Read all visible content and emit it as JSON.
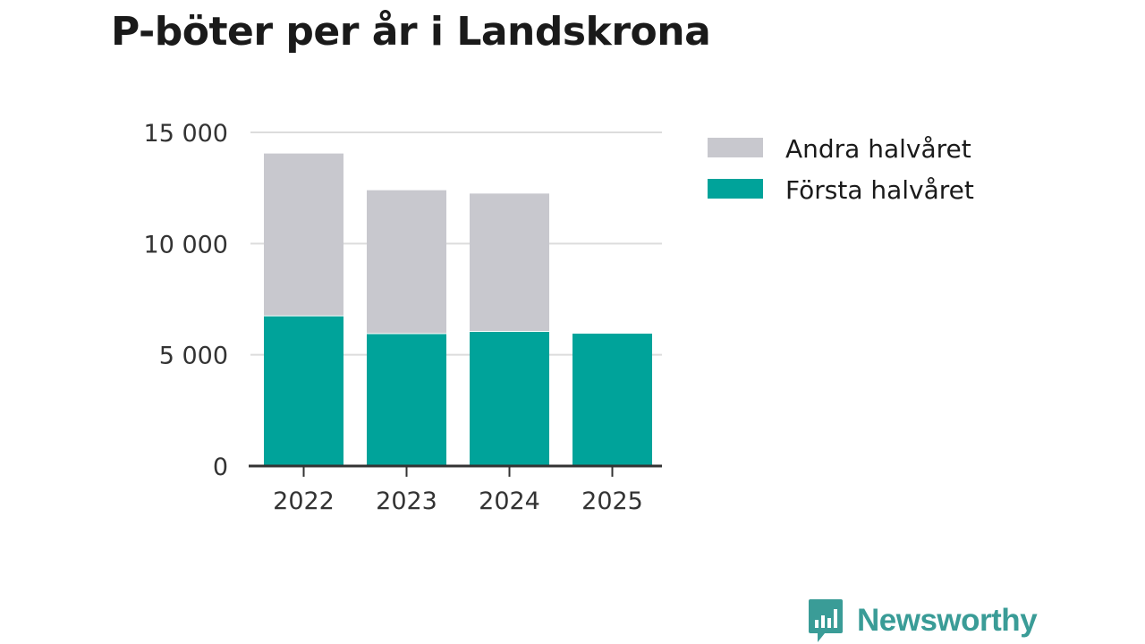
{
  "chart_data": {
    "type": "bar",
    "stacked": true,
    "title": "P-böter per år i Landskrona",
    "xlabel": "",
    "ylabel": "",
    "categories": [
      "2022",
      "2023",
      "2024",
      "2025"
    ],
    "series": [
      {
        "name": "Första halvåret",
        "color": "#00a39a",
        "values": [
          6750,
          5950,
          6050,
          5950
        ]
      },
      {
        "name": "Andra halvåret",
        "color": "#c8c8ce",
        "values": [
          7300,
          6450,
          6200,
          0
        ]
      }
    ],
    "legend_order": [
      "Andra halvåret",
      "Första halvåret"
    ],
    "ylim": [
      0,
      15000
    ],
    "yticks": [
      0,
      5000,
      10000,
      15000
    ],
    "ytick_labels": [
      "0",
      "5 000",
      "10 000",
      "15 000"
    ],
    "grid": true,
    "legend_position": "right"
  },
  "brand": {
    "name": "Newsworthy",
    "color": "#3a9c97"
  }
}
